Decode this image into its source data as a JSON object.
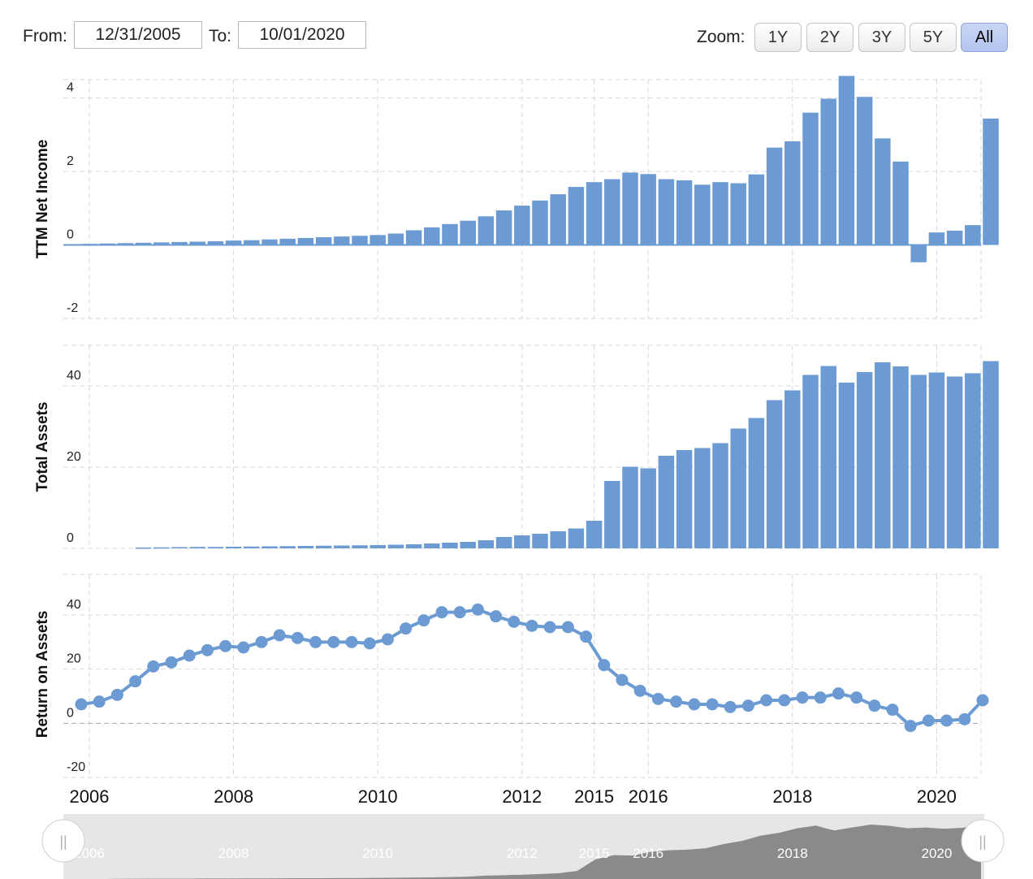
{
  "range": {
    "from_label": "From:",
    "from_value": "12/31/2005",
    "to_label": "To:",
    "to_value": "10/01/2020"
  },
  "zoom": {
    "label": "Zoom:",
    "buttons": [
      "1Y",
      "2Y",
      "3Y",
      "5Y",
      "All"
    ],
    "active": "All"
  },
  "colors": {
    "series": "#6b9bd2",
    "grid": "#d9d9d9",
    "navigator_fill": "#8a8a8a",
    "navigator_bg": "#e6e6e6"
  },
  "chart_data": [
    {
      "type": "bar",
      "ylabel": "TTM Net Income",
      "ylim": [
        -2,
        4.5
      ],
      "yticks": [
        -2,
        0,
        2,
        4
      ],
      "values": [
        0.03,
        0.04,
        0.05,
        0.06,
        0.07,
        0.08,
        0.09,
        0.1,
        0.12,
        0.13,
        0.15,
        0.17,
        0.19,
        0.21,
        0.23,
        0.25,
        0.27,
        0.31,
        0.4,
        0.48,
        0.57,
        0.66,
        0.78,
        0.94,
        1.07,
        1.21,
        1.38,
        1.58,
        1.71,
        1.79,
        1.97,
        1.93,
        1.79,
        1.76,
        1.64,
        1.71,
        1.68,
        1.92,
        2.65,
        2.82,
        3.6,
        3.98,
        4.6,
        4.03,
        2.9,
        2.27,
        -0.47,
        0.34,
        0.39,
        0.54,
        3.44
      ]
    },
    {
      "type": "bar",
      "ylabel": "Total Assets",
      "ylim": [
        0,
        50
      ],
      "yticks": [
        0,
        20,
        40
      ],
      "values": [
        0,
        0,
        0,
        0.2,
        0.25,
        0.3,
        0.35,
        0.35,
        0.4,
        0.45,
        0.5,
        0.55,
        0.6,
        0.65,
        0.7,
        0.75,
        0.8,
        0.9,
        1.0,
        1.2,
        1.4,
        1.6,
        2.0,
        2.8,
        3.2,
        3.6,
        4.2,
        4.9,
        6.8,
        16.6,
        20.1,
        19.7,
        22.8,
        24.2,
        24.7,
        25.9,
        29.5,
        32.1,
        36.5,
        38.9,
        42.7,
        44.9,
        40.8,
        43.4,
        45.8,
        44.8,
        42.7,
        43.3,
        42.3,
        43.1,
        46.1
      ]
    },
    {
      "type": "line",
      "ylabel": "Return on Assets",
      "ylim": [
        -20,
        55
      ],
      "yticks": [
        -20,
        0,
        20,
        40
      ],
      "values": [
        7,
        8,
        10.5,
        15.5,
        21,
        22.5,
        25,
        27,
        28.5,
        28,
        30,
        32.5,
        31.5,
        30,
        30,
        30,
        29.5,
        31,
        35,
        38,
        41,
        41,
        42,
        39.5,
        37.5,
        36,
        35.5,
        35.5,
        32,
        21.5,
        16,
        12,
        9,
        8,
        7,
        7,
        6,
        6.5,
        8.5,
        8.5,
        9.5,
        9.5,
        11,
        9.5,
        6.5,
        5,
        -1,
        1,
        1,
        1.5,
        8.5
      ]
    }
  ],
  "x_axis": {
    "ticks": [
      {
        "label": "2006",
        "idx": 0
      },
      {
        "label": "2008",
        "idx": 8
      },
      {
        "label": "2010",
        "idx": 16
      },
      {
        "label": "2012",
        "idx": 24
      },
      {
        "label": "2015",
        "idx": 28
      },
      {
        "label": "2016",
        "idx": 31
      },
      {
        "label": "2018",
        "idx": 39
      },
      {
        "label": "2020",
        "idx": 47
      }
    ]
  },
  "navigator": {
    "handle_glyph": "||"
  }
}
